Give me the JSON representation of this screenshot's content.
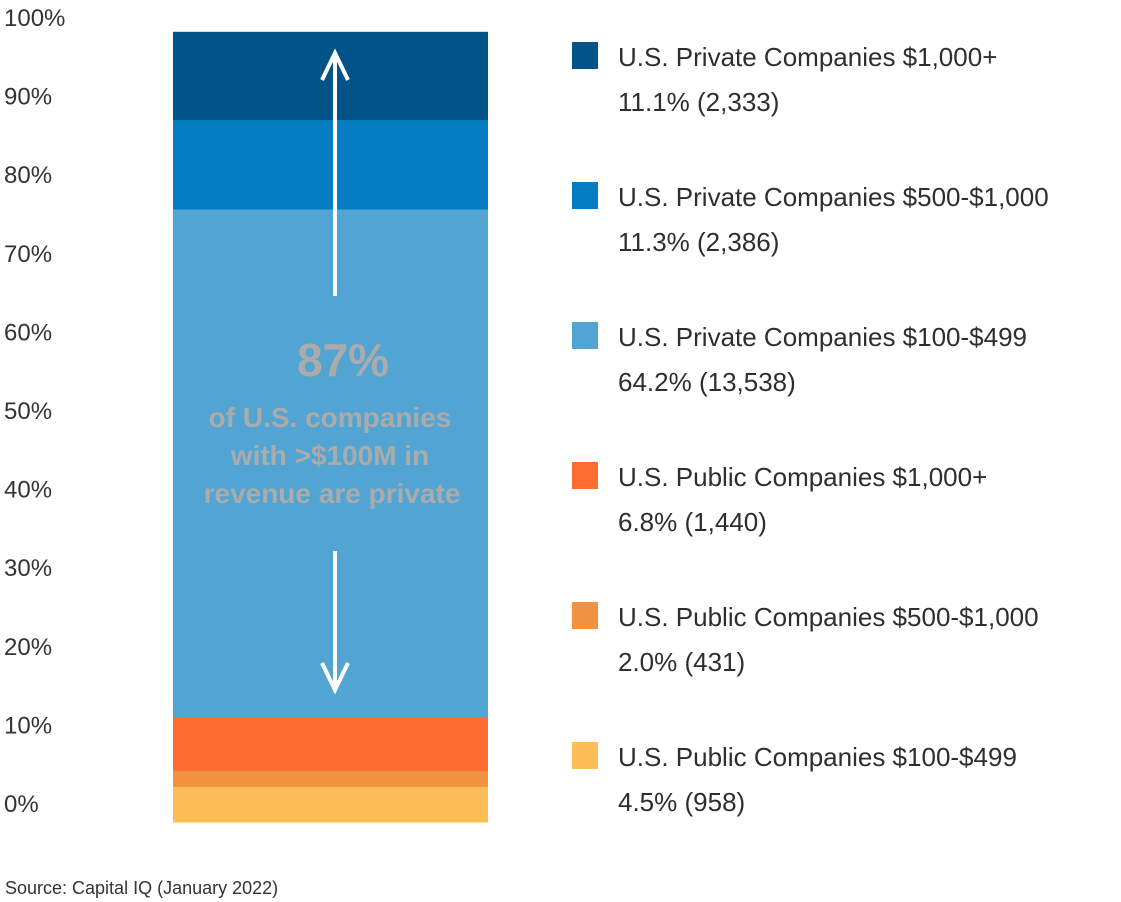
{
  "chart_data": {
    "type": "bar",
    "stacked": true,
    "categories": [
      ""
    ],
    "ylim": [
      0,
      100
    ],
    "yticks": [
      "0%",
      "10%",
      "20%",
      "30%",
      "40%",
      "50%",
      "60%",
      "70%",
      "80%",
      "90%",
      "100%"
    ],
    "grid": false,
    "legend_position": "right",
    "series": [
      {
        "name": "U.S. Public Companies $100-$499",
        "value": 4.5,
        "label": "4.5% (958)",
        "color": "#ffbd58"
      },
      {
        "name": "U.S. Public Companies $500-$1,000",
        "value": 2.0,
        "label": "2.0% (431)",
        "color": "#f0923f"
      },
      {
        "name": "U.S. Public Companies $1,000+",
        "value": 6.8,
        "label": "6.8% (1,440)",
        "color": "#ff6c2f"
      },
      {
        "name": "U.S. Private Companies $100-$499",
        "value": 64.2,
        "label": "64.2% (13,538)",
        "color": "#52a5d3"
      },
      {
        "name": "U.S. Private Companies $500-$1,000",
        "value": 11.3,
        "label": "11.3% (2,386)",
        "color": "#047dc2"
      },
      {
        "name": "U.S. Private Companies $1,000+",
        "value": 11.1,
        "label": "11.1% (2,333)",
        "color": "#025388"
      }
    ],
    "annotation": {
      "headline": "87%",
      "lines": [
        "of U.S. companies",
        "with >$100M in",
        "revenue are private"
      ]
    },
    "source": "Source: Capital IQ (January 2022)"
  }
}
